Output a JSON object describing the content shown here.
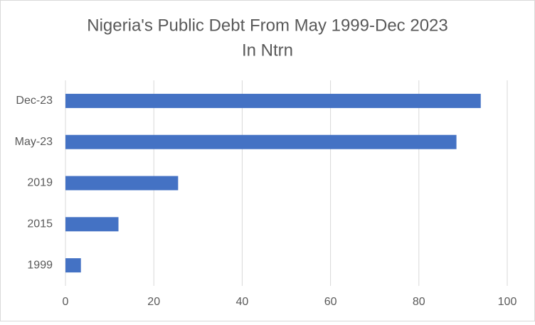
{
  "chart_data": {
    "type": "bar",
    "orientation": "horizontal",
    "title": [
      "Nigeria's Public Debt From May 1999-Dec 2023",
      "In Ntrn"
    ],
    "categories": [
      "Dec-23",
      "May-23",
      "2019",
      "2015",
      "1999"
    ],
    "values": [
      94,
      88.5,
      25.5,
      12,
      3.5
    ],
    "color": "#4472c4",
    "xlim": [
      0,
      100
    ],
    "xticks": [
      0,
      20,
      40,
      60,
      80,
      100
    ],
    "grid": true
  }
}
